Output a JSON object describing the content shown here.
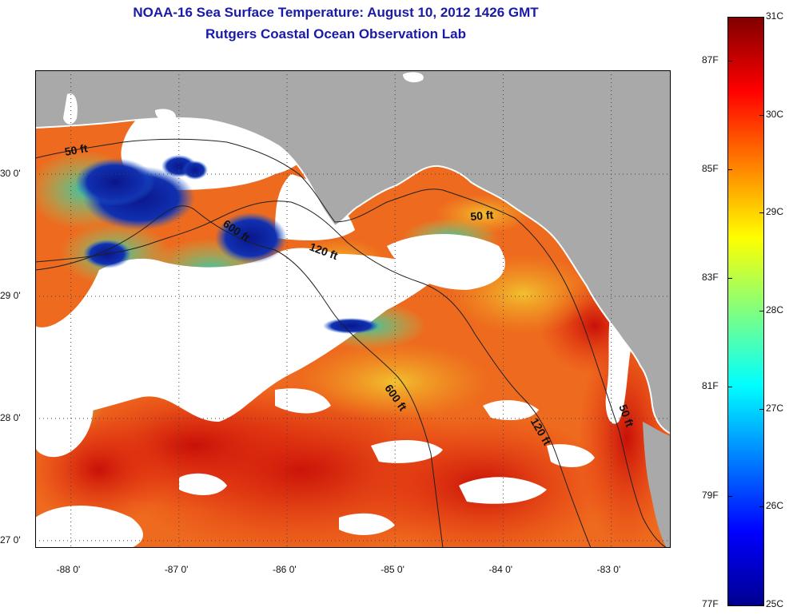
{
  "title": {
    "line1": "NOAA-16 Sea Surface Temperature:  August 10, 2012 1426 GMT",
    "line2": "Rutgers Coastal Ocean Observation Lab"
  },
  "map": {
    "lon_range": [
      -88.33,
      -82.45
    ],
    "lat_range": [
      26.94,
      30.85
    ],
    "lon_ticks": [
      -88,
      -87,
      -86,
      -85,
      -84,
      -83
    ],
    "lon_tick_labels": [
      "-88 0'",
      "-87 0'",
      "-86 0'",
      "-85 0'",
      "-84 0'",
      "-83 0'"
    ],
    "lat_ticks": [
      30,
      29,
      28,
      27
    ],
    "lat_tick_labels": [
      "30 0'",
      "29 0'",
      "28 0'",
      "27 0'"
    ],
    "contours": [
      {
        "label": "50 ft",
        "lon": -88.05,
        "lat": 30.15
      },
      {
        "label": "600 ft",
        "lon": -86.6,
        "lat": 29.58
      },
      {
        "label": "120 ft",
        "lon": -85.8,
        "lat": 29.38
      },
      {
        "label": "50 ft",
        "lon": -84.3,
        "lat": 29.62
      },
      {
        "label": "600 ft",
        "lon": -85.1,
        "lat": 28.25
      },
      {
        "label": "120 ft",
        "lon": -83.75,
        "lat": 27.98
      },
      {
        "label": "50 ft",
        "lon": -82.93,
        "lat": 28.1
      }
    ],
    "colors": {
      "land": "#a9a9a9",
      "cloud": "#ffffff",
      "ocean_warm": "#f07020",
      "ocean_hot": "#d82010",
      "ocean_mid": "#f0b030",
      "ocean_cool": "#6ad08a",
      "ocean_cold": "#1020a0"
    }
  },
  "colorbar": {
    "c_labels": [
      "31C",
      "30C",
      "29C",
      "28C",
      "27C",
      "26C",
      "25C"
    ],
    "f_labels": [
      "87F",
      "85F",
      "83F",
      "81F",
      "79F",
      "77F"
    ],
    "c_range": [
      25,
      31
    ],
    "f_range": [
      77,
      87.8
    ],
    "colors": [
      "#00008f",
      "#0000ff",
      "#0080ff",
      "#00ffff",
      "#80ff80",
      "#ffff00",
      "#ff8000",
      "#ff0000",
      "#800000"
    ]
  }
}
